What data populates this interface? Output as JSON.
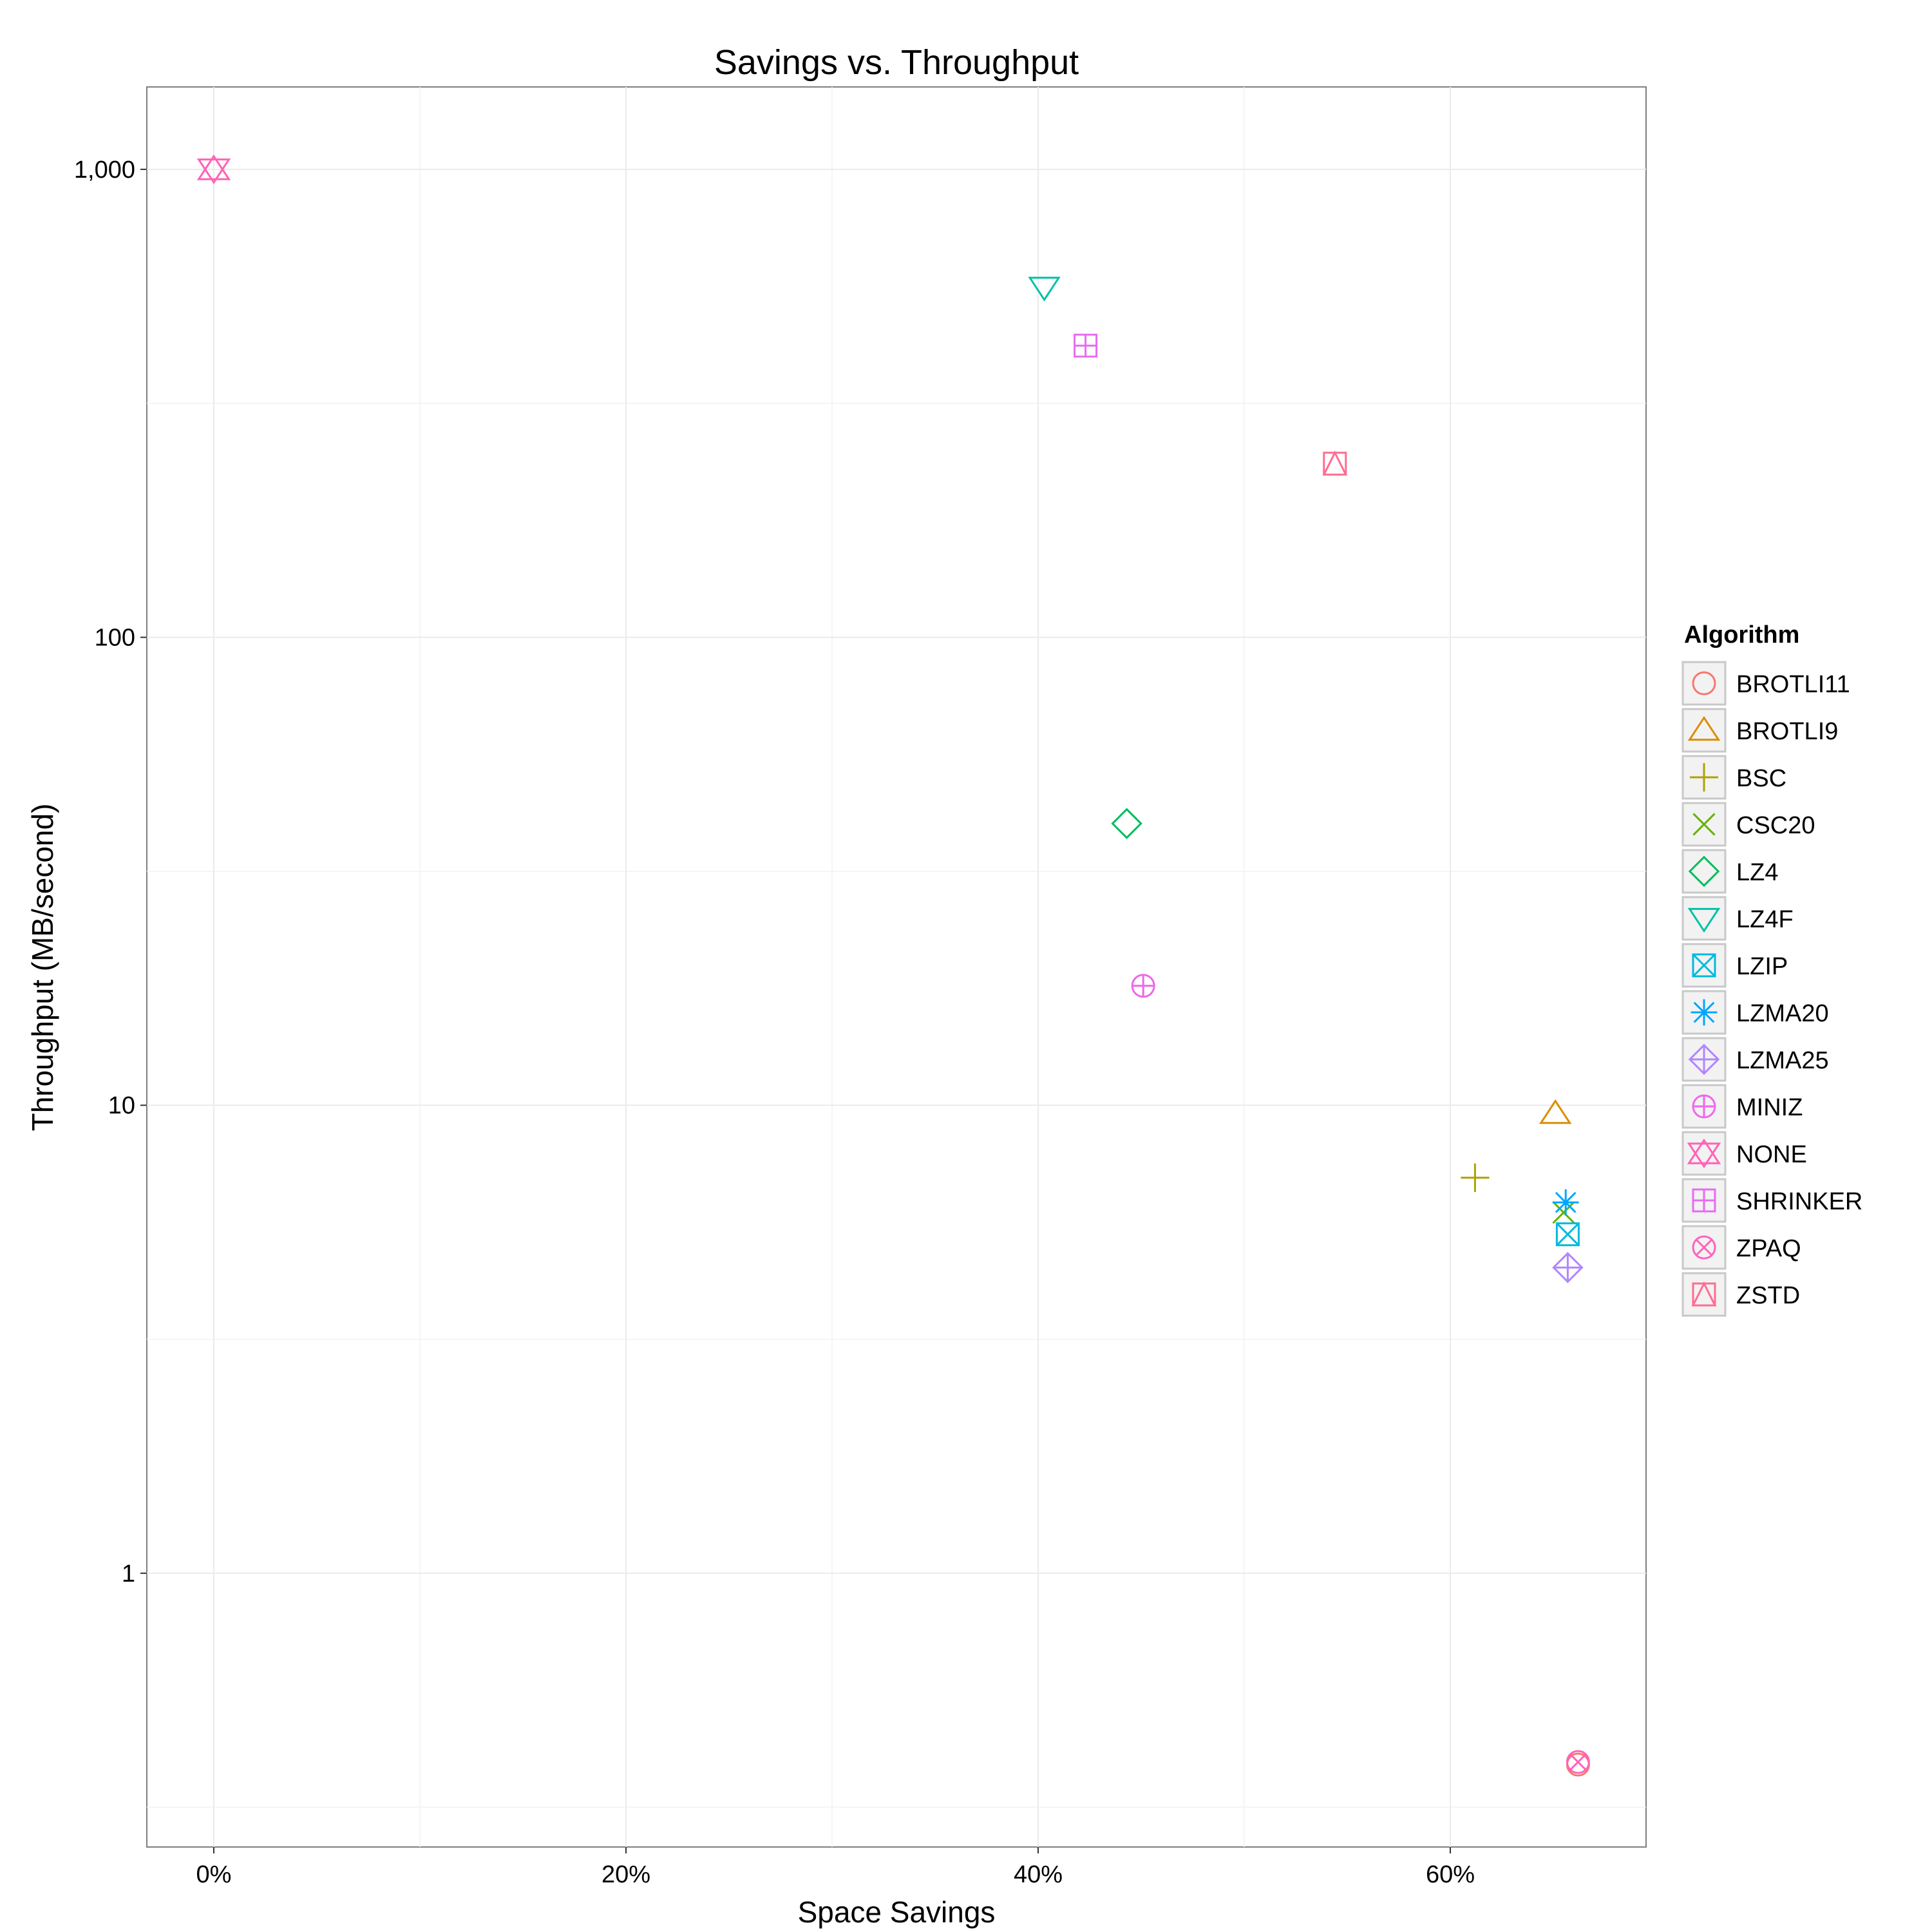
{
  "chart_data": {
    "type": "scatter",
    "title": "Savings vs. Throughput",
    "xlabel": "Space Savings",
    "ylabel": "Throughput (MB/second)",
    "x_scale": "linear",
    "y_scale": "log10",
    "xlim": [
      -0.0325,
      0.695
    ],
    "ylim": [
      0.26,
      1500
    ],
    "x_ticks": [
      0,
      0.2,
      0.4,
      0.6
    ],
    "x_tick_labels": [
      "0%",
      "20%",
      "40%",
      "60%"
    ],
    "y_ticks": [
      1,
      10,
      100,
      1000
    ],
    "y_tick_labels": [
      "1",
      "10",
      "100",
      "1,000"
    ],
    "grid": true,
    "legend": {
      "title": "Algorithm",
      "position": "right"
    },
    "series": [
      {
        "name": "BROTLI11",
        "shape": "circle",
        "color": "#F8766D",
        "x": 0.662,
        "y": 0.39
      },
      {
        "name": "BROTLI9",
        "shape": "triangle",
        "color": "#DB8E00",
        "x": 0.651,
        "y": 9.6
      },
      {
        "name": "BSC",
        "shape": "plus",
        "color": "#AEA200",
        "x": 0.612,
        "y": 7.0
      },
      {
        "name": "CSC20",
        "shape": "cross",
        "color": "#64B200",
        "x": 0.655,
        "y": 5.9
      },
      {
        "name": "LZ4",
        "shape": "diamond",
        "color": "#00BD5C",
        "x": 0.443,
        "y": 40
      },
      {
        "name": "LZ4F",
        "shape": "triangle-down",
        "color": "#00C1A7",
        "x": 0.403,
        "y": 560
      },
      {
        "name": "LZIP",
        "shape": "square-cross",
        "color": "#00BADE",
        "x": 0.657,
        "y": 5.3
      },
      {
        "name": "LZMA20",
        "shape": "asterisk",
        "color": "#00A6FF",
        "x": 0.656,
        "y": 6.2
      },
      {
        "name": "LZMA25",
        "shape": "diamond-plus",
        "color": "#B385FF",
        "x": 0.657,
        "y": 4.5
      },
      {
        "name": "MINIZ",
        "shape": "circle-plus",
        "color": "#EF67EB",
        "x": 0.451,
        "y": 18
      },
      {
        "name": "NONE",
        "shape": "star",
        "color": "#FF63B6",
        "x": 0.0,
        "y": 1000
      },
      {
        "name": "SHRINKER",
        "shape": "square-plus",
        "color": "#E76BF3",
        "x": 0.423,
        "y": 420
      },
      {
        "name": "ZPAQ",
        "shape": "circle-cross",
        "color": "#FF62BC",
        "x": 0.662,
        "y": 0.395
      },
      {
        "name": "ZSTD",
        "shape": "square-triangle",
        "color": "#FF6C91",
        "x": 0.544,
        "y": 235
      }
    ]
  }
}
